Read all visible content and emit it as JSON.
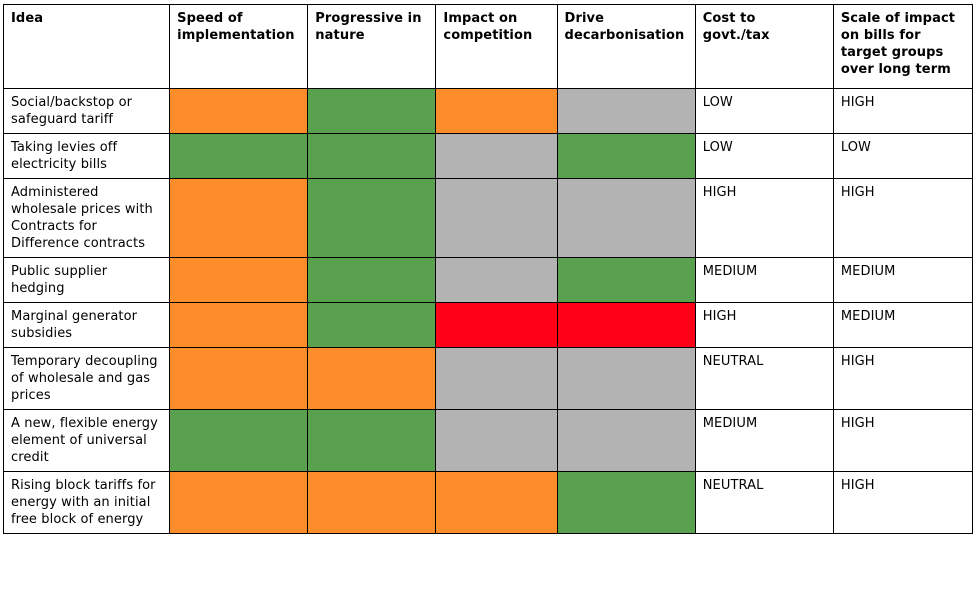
{
  "colors": {
    "orange": "#fd8c2a",
    "green": "#59a14f",
    "grey": "#b3b3b3",
    "red": "#ff0016"
  },
  "headers": [
    "Idea",
    "Speed of implementation",
    "Progressive in nature",
    "Impact on competition",
    "Drive decarbonisation",
    "Cost to govt./tax",
    "Scale of impact on bills for target groups over long term"
  ],
  "rows": [
    {
      "idea": "Social/backstop or safeguard tariff",
      "speed": "orange",
      "progressive": "green",
      "competition": "orange",
      "decarbonisation": "grey",
      "cost": "LOW",
      "scale": "HIGH"
    },
    {
      "idea": "Taking levies off electricity bills",
      "speed": "green",
      "progressive": "green",
      "competition": "grey",
      "decarbonisation": "green",
      "cost": "LOW",
      "scale": "LOW"
    },
    {
      "idea": "Administered wholesale prices with Contracts for Difference contracts",
      "speed": "orange",
      "progressive": "green",
      "competition": "grey",
      "decarbonisation": "grey",
      "cost": "HIGH",
      "scale": "HIGH"
    },
    {
      "idea": "Public supplier hedging",
      "speed": "orange",
      "progressive": "green",
      "competition": "grey",
      "decarbonisation": "green",
      "cost": "MEDIUM",
      "scale": "MEDIUM"
    },
    {
      "idea": "Marginal generator subsidies",
      "speed": "orange",
      "progressive": "green",
      "competition": "red",
      "decarbonisation": "red",
      "cost": "HIGH",
      "scale": "MEDIUM"
    },
    {
      "idea": "Temporary decoupling of wholesale and gas prices",
      "speed": "orange",
      "progressive": "orange",
      "competition": "grey",
      "decarbonisation": "grey",
      "cost": "NEUTRAL",
      "scale": "HIGH"
    },
    {
      "idea": "A new, flexible energy element of universal credit",
      "speed": "green",
      "progressive": "green",
      "competition": "grey",
      "decarbonisation": "grey",
      "cost": "MEDIUM",
      "scale": "HIGH"
    },
    {
      "idea": "Rising block tariffs for energy with an initial free block of energy",
      "speed": "orange",
      "progressive": "orange",
      "competition": "orange",
      "decarbonisation": "green",
      "cost": "NEUTRAL",
      "scale": "HIGH"
    }
  ]
}
